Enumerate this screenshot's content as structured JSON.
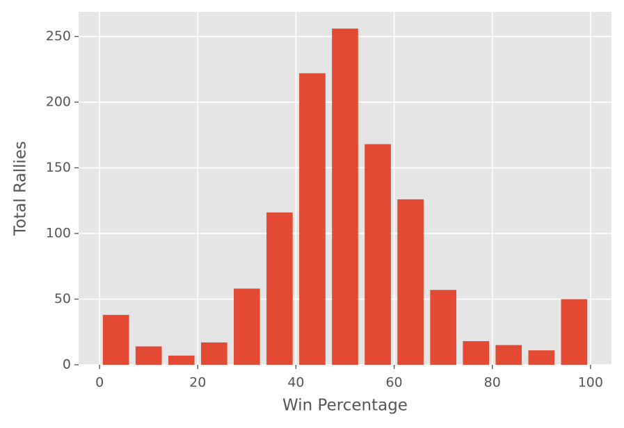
{
  "chart_data": {
    "type": "histogram",
    "xlabel": "Win Percentage",
    "ylabel": "Total Rallies",
    "bins": [
      0,
      6.6667,
      13.3333,
      20,
      26.6667,
      33.3333,
      40,
      46.6667,
      53.3333,
      60,
      66.6667,
      73.3333,
      80,
      86.6667,
      93.3333,
      100
    ],
    "values": [
      38,
      14,
      7,
      17,
      58,
      116,
      222,
      256,
      168,
      126,
      57,
      18,
      15,
      11,
      50
    ],
    "color": "#e24a33",
    "xlim": [
      -4.27,
      104.27
    ],
    "xticks": [
      0,
      20,
      40,
      60,
      80,
      100
    ],
    "ylim": [
      0,
      268.8
    ],
    "yticks": [
      0,
      50,
      100,
      150,
      200,
      250
    ],
    "grid": true
  }
}
